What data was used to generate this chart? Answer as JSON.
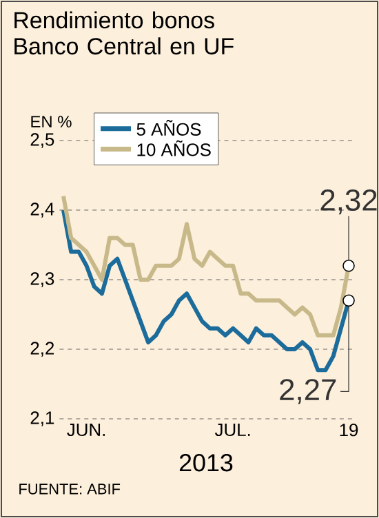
{
  "chart_data": {
    "type": "line",
    "title": "Rendimiento bonos Banco Central en UF",
    "ylabel": "EN %",
    "xlabel": "2013",
    "categories": [
      null,
      null,
      null,
      "JUN.",
      null,
      null,
      null,
      null,
      null,
      null,
      null,
      null,
      null,
      null,
      null,
      null,
      null,
      null,
      null,
      null,
      null,
      null,
      "JUL.",
      null,
      null,
      null,
      null,
      null,
      null,
      null,
      null,
      null,
      null,
      null,
      null,
      null,
      null,
      "19"
    ],
    "series": [
      {
        "name": "5 AÑOS",
        "color": "#1b6b9b",
        "values": [
          2.4,
          2.34,
          2.34,
          2.32,
          2.29,
          2.28,
          2.32,
          2.33,
          2.3,
          2.27,
          2.24,
          2.21,
          2.22,
          2.24,
          2.25,
          2.27,
          2.28,
          2.26,
          2.24,
          2.23,
          2.23,
          2.22,
          2.23,
          2.22,
          2.21,
          2.23,
          2.22,
          2.22,
          2.21,
          2.2,
          2.2,
          2.21,
          2.2,
          2.17,
          2.17,
          2.19,
          2.23,
          2.27
        ]
      },
      {
        "name": "10 AÑOS",
        "color": "#c8b98a",
        "values": [
          2.42,
          2.36,
          2.35,
          2.34,
          2.32,
          2.3,
          2.36,
          2.36,
          2.35,
          2.35,
          2.3,
          2.3,
          2.32,
          2.32,
          2.32,
          2.33,
          2.38,
          2.33,
          2.32,
          2.34,
          2.33,
          2.32,
          2.32,
          2.28,
          2.28,
          2.27,
          2.27,
          2.27,
          2.27,
          2.26,
          2.25,
          2.26,
          2.25,
          2.22,
          2.22,
          2.22,
          2.26,
          2.32
        ]
      }
    ],
    "ylim": [
      2.1,
      2.5
    ],
    "yticks": [
      {
        "value": 2.1,
        "label": "2,1"
      },
      {
        "value": 2.2,
        "label": "2,2"
      },
      {
        "value": 2.3,
        "label": "2,3"
      },
      {
        "value": 2.4,
        "label": "2,4"
      },
      {
        "value": 2.5,
        "label": "2,5"
      }
    ],
    "grid": "y",
    "legend": "top left",
    "marker": "none",
    "line_style": "solid",
    "annotations": [
      {
        "text": "2,32",
        "x": "19",
        "y": 2.32
      },
      {
        "text": "2,27",
        "x": "19",
        "y": 2.27
      },
      "FUENTE: ABIF"
    ]
  }
}
